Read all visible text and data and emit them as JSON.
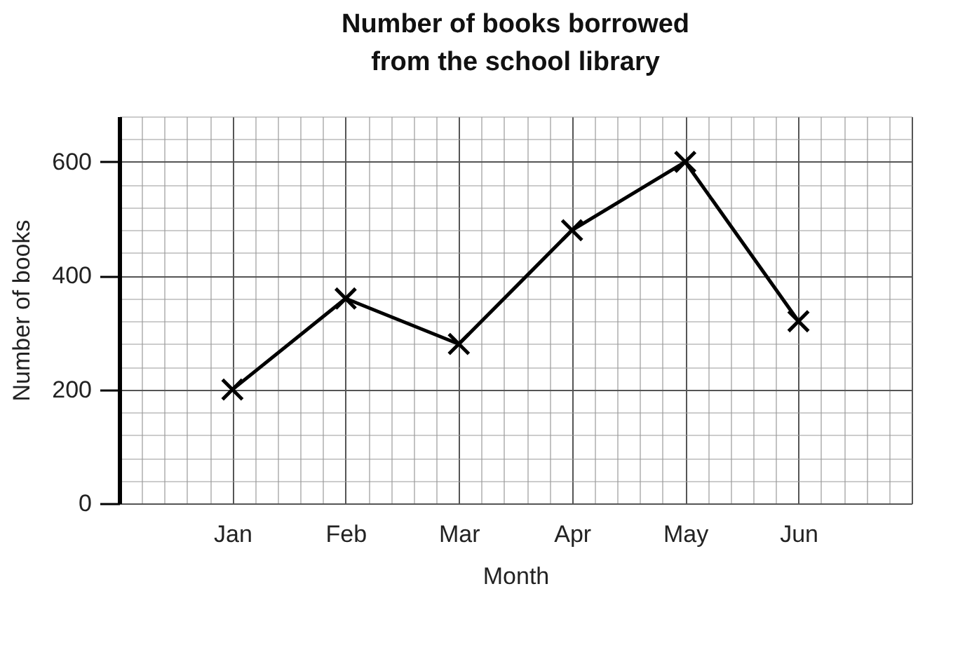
{
  "chart_data": {
    "type": "line",
    "title": "Number of books borrowed from the school library",
    "xlabel": "Month",
    "ylabel": "Number of books",
    "categories": [
      "Jan",
      "Feb",
      "Mar",
      "Apr",
      "May",
      "Jun"
    ],
    "series": [
      {
        "color": "#000000",
        "values": [
          200,
          360,
          280,
          480,
          600,
          320
        ]
      }
    ],
    "ylim": [
      0,
      680
    ],
    "yticks": [
      0,
      200,
      400,
      600
    ],
    "grid": true,
    "marker": "cross",
    "line_style": "solid"
  }
}
